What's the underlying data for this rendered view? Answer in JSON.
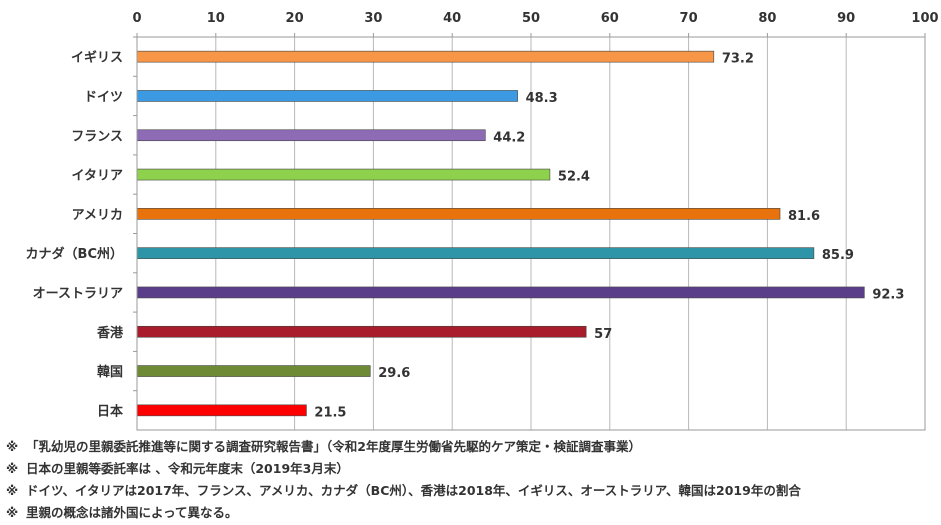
{
  "chart_data": {
    "type": "bar",
    "orientation": "horizontal",
    "categories": [
      "イギリス",
      "ドイツ",
      "フランス",
      "イタリア",
      "アメリカ",
      "カナダ（BC州）",
      "オーストラリア",
      "香港",
      "韓国",
      "日本"
    ],
    "values": [
      73.2,
      48.3,
      44.2,
      52.4,
      81.6,
      85.9,
      92.3,
      57,
      29.6,
      21.5
    ],
    "value_labels": [
      "73.2",
      "48.3",
      "44.2",
      "52.4",
      "81.6",
      "85.9",
      "92.3",
      "57",
      "29.6",
      "21.5"
    ],
    "colors": [
      "#F79646",
      "#3B9AE1",
      "#8E6BB5",
      "#8ED14D",
      "#E8720C",
      "#2E95A8",
      "#5B3E8A",
      "#A81C2B",
      "#6E8A35",
      "#FF0000"
    ],
    "xlim": [
      0,
      100
    ],
    "xticks": [
      "0",
      "10",
      "20",
      "30",
      "40",
      "50",
      "60",
      "70",
      "80",
      "90",
      "100"
    ],
    "axis_position": "top",
    "grid": true,
    "title": "",
    "xlabel": "",
    "ylabel": ""
  },
  "notes": [
    {
      "mark": "※",
      "text": "「乳幼児の里親委託推進等に関する調査研究報告書」（令和2年度厚生労働省先駆的ケア策定・検証調査事業）"
    },
    {
      "mark": "※",
      "text": "日本の里親等委託率は 、令和元年度末（2019年3月末）"
    },
    {
      "mark": "※",
      "text": "ドイツ、イタリアは2017年、フランス、アメリカ、カナダ（BC州）、香港は2018年、イギリス、オーストラリア、韓国は2019年の割合"
    },
    {
      "mark": "※",
      "text": "里親の概念は諸外国によって異なる。"
    }
  ]
}
